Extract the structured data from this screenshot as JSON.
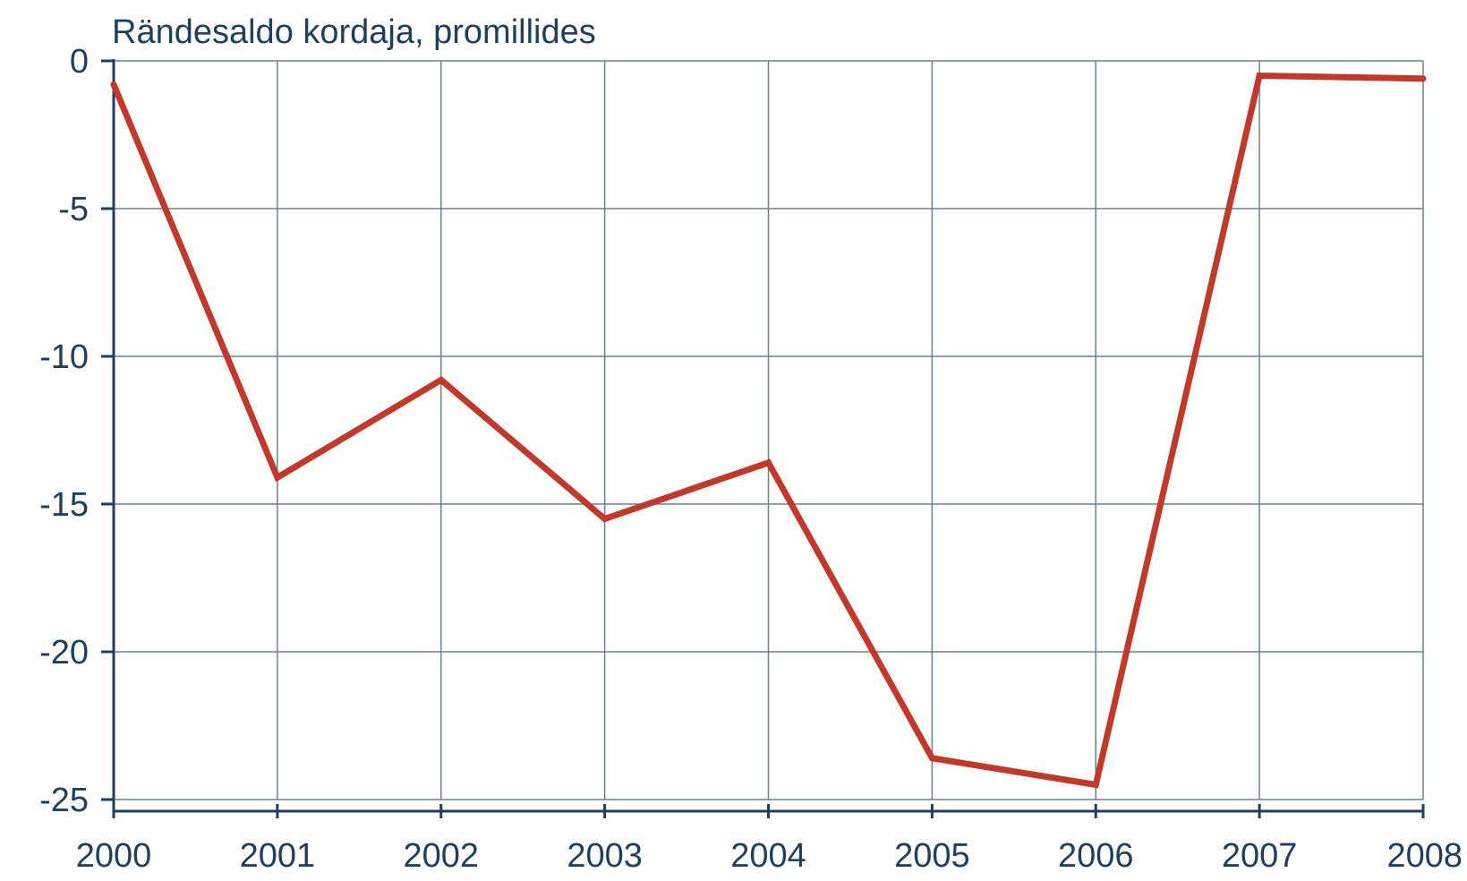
{
  "chart_data": {
    "type": "line",
    "title": "Rändesaldo kordaja, promillides",
    "xlabel": "",
    "ylabel": "",
    "categories": [
      "2000",
      "2001",
      "2002",
      "2003",
      "2004",
      "2005",
      "2006",
      "2007",
      "2008"
    ],
    "series": [
      {
        "values": [
          -0.8,
          -14.1,
          -10.8,
          -15.5,
          -13.6,
          -23.6,
          -24.5,
          -0.5,
          -0.6
        ]
      }
    ],
    "ylim": [
      -25,
      0
    ],
    "yticks": [
      "0",
      "-5",
      "-10",
      "-15",
      "-20",
      "-25"
    ],
    "grid": true,
    "legend": "none",
    "colors": {
      "line": "#c0392b",
      "grid": "#6d8090",
      "axis": "#1f3f5f",
      "text": "#1f3f5f"
    }
  }
}
